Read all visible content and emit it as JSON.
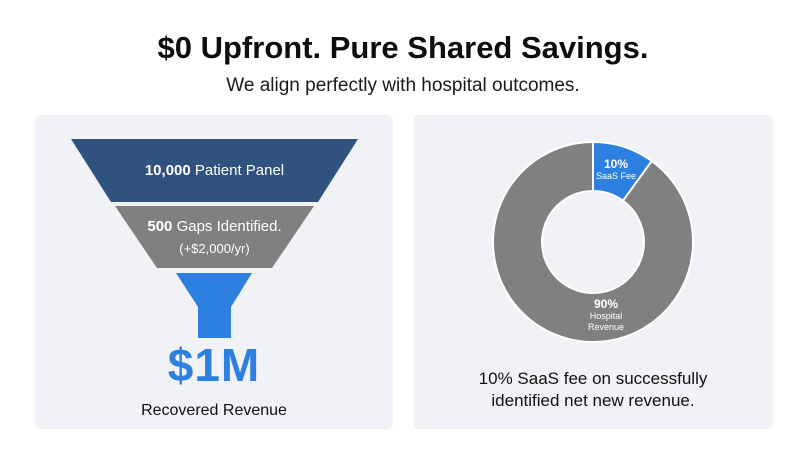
{
  "header": {
    "title": "$0 Upfront. Pure Shared Savings.",
    "subtitle": "We align perfectly with hospital outcomes."
  },
  "funnel": {
    "stage1_number": "10,000",
    "stage1_text": "Patient Panel",
    "stage2_number": "500",
    "stage2_text": "Gaps Identified.",
    "stage2_sub": "(+$2,000/yr)",
    "result_amount": "$1M",
    "result_caption": "Recovered Revenue"
  },
  "donut": {
    "slices": [
      {
        "pct_label": "10%",
        "name": "SaaS Fee"
      },
      {
        "pct_label": "90%",
        "name_line1": "Hospital",
        "name_line2": "Revenue"
      }
    ],
    "caption_line1": "10% SaaS fee on successfully",
    "caption_line2": "identified net new revenue."
  },
  "colors": {
    "navy": "#2f527f",
    "gray": "#808080",
    "blue": "#2d7fe0",
    "panel_bg": "#f0f2f5"
  },
  "chart_data": {
    "type": "pie",
    "categories": [
      "SaaS Fee",
      "Hospital Revenue"
    ],
    "values": [
      10,
      90
    ],
    "title": "",
    "xlabel": "",
    "ylabel": ""
  }
}
